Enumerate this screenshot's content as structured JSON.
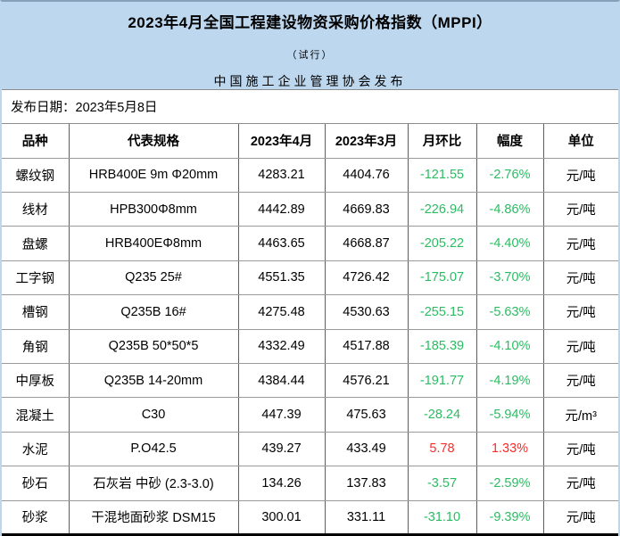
{
  "banner": {
    "title": "2023年4月全国工程建设物资采购价格指数（MPPI）",
    "subtitle": "（试行）",
    "publisher": "中国施工企业管理协会发布",
    "background_color": "#bdd7ee"
  },
  "publish_date": {
    "text": "发布日期：2023年5月8日"
  },
  "colors": {
    "decrease_green": "#29bd62",
    "increase_red": "#fb2b2b"
  },
  "table": {
    "columns": [
      "品种",
      "代表规格",
      "2023年4月",
      "2023年3月",
      "月环比",
      "幅度",
      "单位"
    ],
    "rows": [
      {
        "variety": "螺纹钢",
        "spec": "HRB400E 9m Φ20mm",
        "apr": "4283.21",
        "mar": "4404.76",
        "mom": "-121.55",
        "pct": "-2.76%",
        "unit": "元/吨"
      },
      {
        "variety": "线材",
        "spec": "HPB300Φ8mm",
        "apr": "4442.89",
        "mar": "4669.83",
        "mom": "-226.94",
        "pct": "-4.86%",
        "unit": "元/吨"
      },
      {
        "variety": "盘螺",
        "spec": "HRB400EΦ8mm",
        "apr": "4463.65",
        "mar": "4668.87",
        "mom": "-205.22",
        "pct": "-4.40%",
        "unit": "元/吨"
      },
      {
        "variety": "工字钢",
        "spec": "Q235 25#",
        "apr": "4551.35",
        "mar": "4726.42",
        "mom": "-175.07",
        "pct": "-3.70%",
        "unit": "元/吨"
      },
      {
        "variety": "槽钢",
        "spec": "Q235B 16#",
        "apr": "4275.48",
        "mar": "4530.63",
        "mom": "-255.15",
        "pct": "-5.63%",
        "unit": "元/吨"
      },
      {
        "variety": "角钢",
        "spec": "Q235B 50*50*5",
        "apr": "4332.49",
        "mar": "4517.88",
        "mom": "-185.39",
        "pct": "-4.10%",
        "unit": "元/吨"
      },
      {
        "variety": "中厚板",
        "spec": "Q235B 14-20mm",
        "apr": "4384.44",
        "mar": "4576.21",
        "mom": "-191.77",
        "pct": "-4.19%",
        "unit": "元/吨"
      },
      {
        "variety": "混凝土",
        "spec": "C30",
        "apr": "447.39",
        "mar": "475.63",
        "mom": "-28.24",
        "pct": "-5.94%",
        "unit": "元/m³"
      },
      {
        "variety": "水泥",
        "spec": "P.O42.5",
        "apr": "439.27",
        "mar": "433.49",
        "mom": "5.78",
        "pct": "1.33%",
        "unit": "元/吨"
      },
      {
        "variety": "砂石",
        "spec": "石灰岩 中砂 (2.3-3.0)",
        "apr": "134.26",
        "mar": "137.83",
        "mom": "-3.57",
        "pct": "-2.59%",
        "unit": "元/吨"
      },
      {
        "variety": "砂浆",
        "spec": "干混地面砂浆 DSM15",
        "apr": "300.01",
        "mar": "331.11",
        "mom": "-31.10",
        "pct": "-9.39%",
        "unit": "元/吨"
      }
    ]
  }
}
